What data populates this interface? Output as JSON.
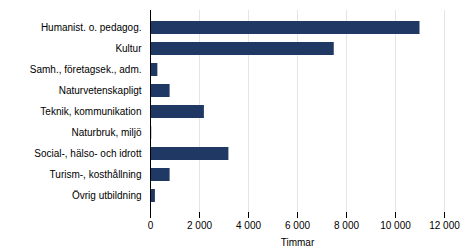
{
  "chart_data": {
    "type": "bar",
    "orientation": "horizontal",
    "categories": [
      "Humanist. o. pedagog.",
      "Kultur",
      "Samh., företagsek., adm.",
      "Naturvetenskapligt",
      "Teknik, kommunikation",
      "Naturbruk, miljö",
      "Social-, hälso- och idrott",
      "Turism-, kosthållning",
      "Övrig utbildning"
    ],
    "values": [
      11000,
      7500,
      300,
      800,
      2200,
      50,
      3200,
      800,
      200
    ],
    "color": "#1F3864",
    "xlabel": "Timmar",
    "xlim": [
      0,
      12000
    ],
    "xticks": [
      0,
      {
        "value": 2000,
        "label": "2 000"
      },
      {
        "value": 4000,
        "label": "4 000"
      },
      {
        "value": 6000,
        "label": "6 000"
      },
      {
        "value": 8000,
        "label": "8 000"
      },
      {
        "value": 10000,
        "label": "10 000"
      },
      {
        "value": 12000,
        "label": "12 000"
      }
    ],
    "grid": true
  }
}
